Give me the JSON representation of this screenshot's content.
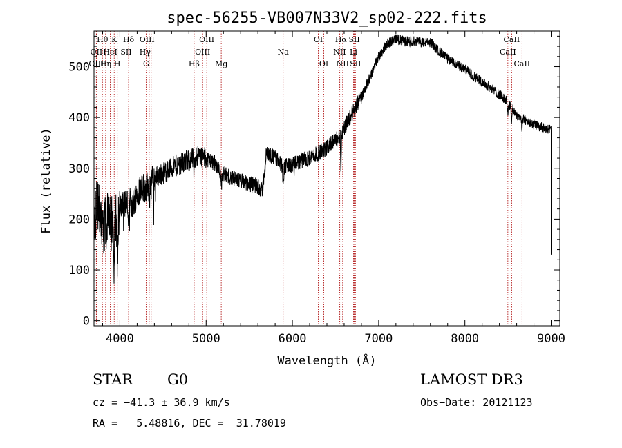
{
  "chart_data": {
    "type": "line",
    "title": "spec-56255-VB007N33V2_sp02-222.fits",
    "xlabel": "Wavelength (Å)",
    "ylabel": "Flux (relative)",
    "xlim": [
      3700,
      9100
    ],
    "ylim": [
      -10,
      570
    ],
    "xticks": [
      4000,
      5000,
      6000,
      7000,
      8000,
      9000
    ],
    "yticks": [
      0,
      100,
      200,
      300,
      400,
      500
    ],
    "xtick_labels": [
      "4000",
      "5000",
      "6000",
      "7000",
      "8000",
      "9000"
    ],
    "ytick_labels": [
      "0",
      "100",
      "200",
      "300",
      "400",
      "500"
    ],
    "line_color": "#000000",
    "marker_color": "#aa0000",
    "continuum": [
      [
        3700,
        200
      ],
      [
        3750,
        230
      ],
      [
        3800,
        180
      ],
      [
        3850,
        200
      ],
      [
        3900,
        190
      ],
      [
        3950,
        210
      ],
      [
        4000,
        215
      ],
      [
        4050,
        230
      ],
      [
        4100,
        235
      ],
      [
        4150,
        230
      ],
      [
        4200,
        250
      ],
      [
        4250,
        265
      ],
      [
        4300,
        260
      ],
      [
        4350,
        275
      ],
      [
        4400,
        280
      ],
      [
        4500,
        290
      ],
      [
        4600,
        300
      ],
      [
        4700,
        310
      ],
      [
        4800,
        315
      ],
      [
        4850,
        320
      ],
      [
        4900,
        325
      ],
      [
        5000,
        320
      ],
      [
        5100,
        310
      ],
      [
        5200,
        290
      ],
      [
        5300,
        280
      ],
      [
        5400,
        275
      ],
      [
        5500,
        270
      ],
      [
        5600,
        265
      ],
      [
        5650,
        255
      ],
      [
        5700,
        330
      ],
      [
        5800,
        320
      ],
      [
        5900,
        305
      ],
      [
        6000,
        305
      ],
      [
        6100,
        315
      ],
      [
        6200,
        320
      ],
      [
        6300,
        330
      ],
      [
        6400,
        340
      ],
      [
        6500,
        355
      ],
      [
        6550,
        365
      ],
      [
        6600,
        380
      ],
      [
        6650,
        395
      ],
      [
        6700,
        410
      ],
      [
        6800,
        440
      ],
      [
        6900,
        480
      ],
      [
        7000,
        520
      ],
      [
        7100,
        545
      ],
      [
        7200,
        555
      ],
      [
        7300,
        550
      ],
      [
        7400,
        550
      ],
      [
        7500,
        548
      ],
      [
        7600,
        548
      ],
      [
        7700,
        530
      ],
      [
        7800,
        515
      ],
      [
        7900,
        505
      ],
      [
        8000,
        495
      ],
      [
        8100,
        482
      ],
      [
        8200,
        470
      ],
      [
        8300,
        458
      ],
      [
        8400,
        445
      ],
      [
        8500,
        430
      ],
      [
        8600,
        405
      ],
      [
        8700,
        395
      ],
      [
        8800,
        385
      ],
      [
        8900,
        380
      ],
      [
        9000,
        375
      ]
    ],
    "features": [
      {
        "w": 3970,
        "dip": 85,
        "width": 8
      },
      {
        "w": 3934,
        "dip": 70,
        "width": 8
      },
      {
        "w": 4101,
        "dip": 40,
        "width": 8
      },
      {
        "w": 4340,
        "dip": 50,
        "width": 8
      },
      {
        "w": 4861,
        "dip": 30,
        "width": 8
      },
      {
        "w": 5175,
        "dip": 25,
        "width": 12
      },
      {
        "w": 5893,
        "dip": 25,
        "width": 10
      },
      {
        "w": 6563,
        "dip": 70,
        "width": 6
      },
      {
        "w": 8498,
        "dip": 20,
        "width": 6
      },
      {
        "w": 8542,
        "dip": 30,
        "width": 6
      },
      {
        "w": 8662,
        "dip": 25,
        "width": 6
      }
    ],
    "lines": [
      {
        "label": "Hθ",
        "w": 3798,
        "row": 0,
        "dx": 0
      },
      {
        "label": "K",
        "w": 3934,
        "row": 0,
        "dx": 0
      },
      {
        "label": "Hδ",
        "w": 4101,
        "row": 0,
        "dx": 0
      },
      {
        "label": "OIII",
        "w": 4363,
        "row": 0,
        "dx": -6
      },
      {
        "label": "OIII",
        "w": 5007,
        "row": 0,
        "dx": 0
      },
      {
        "label": "OI",
        "w": 6300,
        "row": 0,
        "dx": 0
      },
      {
        "label": "Hα",
        "w": 6563,
        "row": 0,
        "dx": 0
      },
      {
        "label": "SII",
        "w": 6717,
        "row": 0,
        "dx": 0
      },
      {
        "label": "CaII",
        "w": 8542,
        "row": 0,
        "dx": 0
      },
      {
        "label": "OII",
        "w": 3727,
        "row": 1,
        "dx": 0
      },
      {
        "label": "HeI",
        "w": 3889,
        "row": 1,
        "dx": 0
      },
      {
        "label": "SII",
        "w": 4072,
        "row": 1,
        "dx": 0
      },
      {
        "label": "Hγ",
        "w": 4340,
        "row": 1,
        "dx": -6
      },
      {
        "label": "OIII",
        "w": 4959,
        "row": 1,
        "dx": 0
      },
      {
        "label": "Na",
        "w": 5893,
        "row": 1,
        "dx": 0
      },
      {
        "label": "NII",
        "w": 6548,
        "row": 1,
        "dx": 0
      },
      {
        "label": "Li",
        "w": 6708,
        "row": 1,
        "dx": 0
      },
      {
        "label": "CaII",
        "w": 8498,
        "row": 1,
        "dx": 0
      },
      {
        "label": "OIII",
        "w": 3727,
        "row": 2,
        "dx": 0
      },
      {
        "label": "Hη",
        "w": 3835,
        "row": 2,
        "dx": 0
      },
      {
        "label": "H",
        "w": 3970,
        "row": 2,
        "dx": 0
      },
      {
        "label": "G",
        "w": 4304,
        "row": 2,
        "dx": 0
      },
      {
        "label": "Hβ",
        "w": 4861,
        "row": 2,
        "dx": 0
      },
      {
        "label": "Mg",
        "w": 5175,
        "row": 2,
        "dx": 0
      },
      {
        "label": "OI",
        "w": 6364,
        "row": 2,
        "dx": 0
      },
      {
        "label": "NII",
        "w": 6583,
        "row": 2,
        "dx": 0
      },
      {
        "label": "SII",
        "w": 6731,
        "row": 2,
        "dx": 0
      },
      {
        "label": "CaII",
        "w": 8662,
        "row": 2,
        "dx": 0
      }
    ]
  },
  "info": {
    "object_class": "STAR",
    "subclass": "G0",
    "survey": "LAMOST DR3",
    "cz": "cz = −41.3 ± 36.9 km/s",
    "obs_date": "Obs−Date: 20121123",
    "coords": "RA =   5.48816, DEC =  31.78019"
  }
}
